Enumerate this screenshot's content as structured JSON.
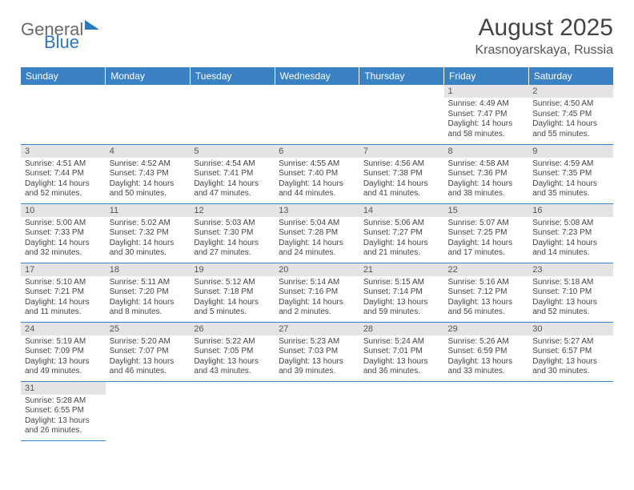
{
  "logo": {
    "part1": "General",
    "part2": "Blue"
  },
  "title": "August 2025",
  "subtitle": "Krasnoyarskaya, Russia",
  "colors": {
    "header_bg": "#3b82c4",
    "header_text": "#ffffff",
    "daynum_bg": "#e4e4e4",
    "border": "#3b82c4",
    "body_text": "#444444",
    "page_bg": "#ffffff"
  },
  "font": {
    "family": "Arial",
    "title_size_pt": 22,
    "subtitle_size_pt": 12,
    "dayhead_size_pt": 9,
    "body_size_pt": 7.5
  },
  "day_headers": [
    "Sunday",
    "Monday",
    "Tuesday",
    "Wednesday",
    "Thursday",
    "Friday",
    "Saturday"
  ],
  "weeks": [
    [
      null,
      null,
      null,
      null,
      null,
      {
        "n": "1",
        "sunrise": "Sunrise: 4:49 AM",
        "sunset": "Sunset: 7:47 PM",
        "daylight": "Daylight: 14 hours and 58 minutes."
      },
      {
        "n": "2",
        "sunrise": "Sunrise: 4:50 AM",
        "sunset": "Sunset: 7:45 PM",
        "daylight": "Daylight: 14 hours and 55 minutes."
      }
    ],
    [
      {
        "n": "3",
        "sunrise": "Sunrise: 4:51 AM",
        "sunset": "Sunset: 7:44 PM",
        "daylight": "Daylight: 14 hours and 52 minutes."
      },
      {
        "n": "4",
        "sunrise": "Sunrise: 4:52 AM",
        "sunset": "Sunset: 7:43 PM",
        "daylight": "Daylight: 14 hours and 50 minutes."
      },
      {
        "n": "5",
        "sunrise": "Sunrise: 4:54 AM",
        "sunset": "Sunset: 7:41 PM",
        "daylight": "Daylight: 14 hours and 47 minutes."
      },
      {
        "n": "6",
        "sunrise": "Sunrise: 4:55 AM",
        "sunset": "Sunset: 7:40 PM",
        "daylight": "Daylight: 14 hours and 44 minutes."
      },
      {
        "n": "7",
        "sunrise": "Sunrise: 4:56 AM",
        "sunset": "Sunset: 7:38 PM",
        "daylight": "Daylight: 14 hours and 41 minutes."
      },
      {
        "n": "8",
        "sunrise": "Sunrise: 4:58 AM",
        "sunset": "Sunset: 7:36 PM",
        "daylight": "Daylight: 14 hours and 38 minutes."
      },
      {
        "n": "9",
        "sunrise": "Sunrise: 4:59 AM",
        "sunset": "Sunset: 7:35 PM",
        "daylight": "Daylight: 14 hours and 35 minutes."
      }
    ],
    [
      {
        "n": "10",
        "sunrise": "Sunrise: 5:00 AM",
        "sunset": "Sunset: 7:33 PM",
        "daylight": "Daylight: 14 hours and 32 minutes."
      },
      {
        "n": "11",
        "sunrise": "Sunrise: 5:02 AM",
        "sunset": "Sunset: 7:32 PM",
        "daylight": "Daylight: 14 hours and 30 minutes."
      },
      {
        "n": "12",
        "sunrise": "Sunrise: 5:03 AM",
        "sunset": "Sunset: 7:30 PM",
        "daylight": "Daylight: 14 hours and 27 minutes."
      },
      {
        "n": "13",
        "sunrise": "Sunrise: 5:04 AM",
        "sunset": "Sunset: 7:28 PM",
        "daylight": "Daylight: 14 hours and 24 minutes."
      },
      {
        "n": "14",
        "sunrise": "Sunrise: 5:06 AM",
        "sunset": "Sunset: 7:27 PM",
        "daylight": "Daylight: 14 hours and 21 minutes."
      },
      {
        "n": "15",
        "sunrise": "Sunrise: 5:07 AM",
        "sunset": "Sunset: 7:25 PM",
        "daylight": "Daylight: 14 hours and 17 minutes."
      },
      {
        "n": "16",
        "sunrise": "Sunrise: 5:08 AM",
        "sunset": "Sunset: 7:23 PM",
        "daylight": "Daylight: 14 hours and 14 minutes."
      }
    ],
    [
      {
        "n": "17",
        "sunrise": "Sunrise: 5:10 AM",
        "sunset": "Sunset: 7:21 PM",
        "daylight": "Daylight: 14 hours and 11 minutes."
      },
      {
        "n": "18",
        "sunrise": "Sunrise: 5:11 AM",
        "sunset": "Sunset: 7:20 PM",
        "daylight": "Daylight: 14 hours and 8 minutes."
      },
      {
        "n": "19",
        "sunrise": "Sunrise: 5:12 AM",
        "sunset": "Sunset: 7:18 PM",
        "daylight": "Daylight: 14 hours and 5 minutes."
      },
      {
        "n": "20",
        "sunrise": "Sunrise: 5:14 AM",
        "sunset": "Sunset: 7:16 PM",
        "daylight": "Daylight: 14 hours and 2 minutes."
      },
      {
        "n": "21",
        "sunrise": "Sunrise: 5:15 AM",
        "sunset": "Sunset: 7:14 PM",
        "daylight": "Daylight: 13 hours and 59 minutes."
      },
      {
        "n": "22",
        "sunrise": "Sunrise: 5:16 AM",
        "sunset": "Sunset: 7:12 PM",
        "daylight": "Daylight: 13 hours and 56 minutes."
      },
      {
        "n": "23",
        "sunrise": "Sunrise: 5:18 AM",
        "sunset": "Sunset: 7:10 PM",
        "daylight": "Daylight: 13 hours and 52 minutes."
      }
    ],
    [
      {
        "n": "24",
        "sunrise": "Sunrise: 5:19 AM",
        "sunset": "Sunset: 7:09 PM",
        "daylight": "Daylight: 13 hours and 49 minutes."
      },
      {
        "n": "25",
        "sunrise": "Sunrise: 5:20 AM",
        "sunset": "Sunset: 7:07 PM",
        "daylight": "Daylight: 13 hours and 46 minutes."
      },
      {
        "n": "26",
        "sunrise": "Sunrise: 5:22 AM",
        "sunset": "Sunset: 7:05 PM",
        "daylight": "Daylight: 13 hours and 43 minutes."
      },
      {
        "n": "27",
        "sunrise": "Sunrise: 5:23 AM",
        "sunset": "Sunset: 7:03 PM",
        "daylight": "Daylight: 13 hours and 39 minutes."
      },
      {
        "n": "28",
        "sunrise": "Sunrise: 5:24 AM",
        "sunset": "Sunset: 7:01 PM",
        "daylight": "Daylight: 13 hours and 36 minutes."
      },
      {
        "n": "29",
        "sunrise": "Sunrise: 5:26 AM",
        "sunset": "Sunset: 6:59 PM",
        "daylight": "Daylight: 13 hours and 33 minutes."
      },
      {
        "n": "30",
        "sunrise": "Sunrise: 5:27 AM",
        "sunset": "Sunset: 6:57 PM",
        "daylight": "Daylight: 13 hours and 30 minutes."
      }
    ],
    [
      {
        "n": "31",
        "sunrise": "Sunrise: 5:28 AM",
        "sunset": "Sunset: 6:55 PM",
        "daylight": "Daylight: 13 hours and 26 minutes."
      },
      null,
      null,
      null,
      null,
      null,
      null
    ]
  ]
}
